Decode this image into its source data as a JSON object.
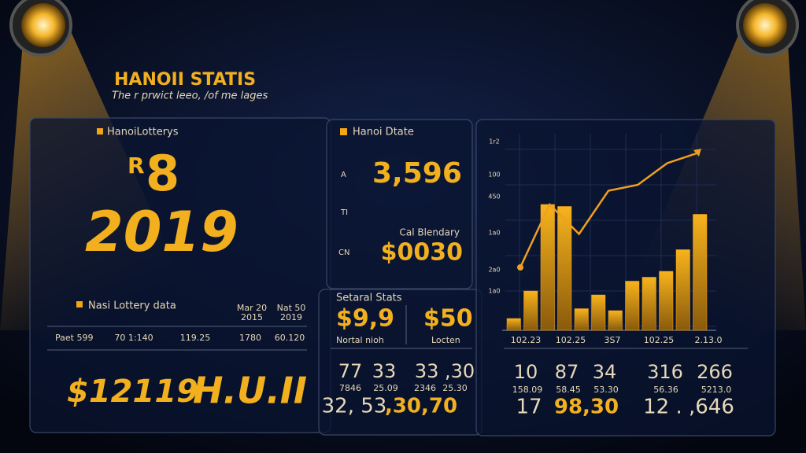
{
  "header": {
    "title": "HANOII STATIS",
    "subtitle": "The r prwict leeo, /of me lages"
  },
  "panel_lottery": {
    "label": "HanoiLotterys",
    "prefix": "R",
    "big": "8",
    "year": "2019",
    "table_title": "Nasi Lottery data",
    "columns": [
      [
        "Mar 20",
        "2015"
      ],
      [
        "Nat 50",
        "2019"
      ]
    ],
    "row": [
      "Paet 599",
      "70 1:140",
      "119.25",
      "1780",
      "60.120"
    ],
    "footer": [
      "$12119",
      "H.U.II"
    ]
  },
  "panel_date": {
    "label": "Hanoi Dtate",
    "value": "3,596",
    "side": [
      "A",
      "TI",
      "CN"
    ],
    "caption": "Cal Blendary",
    "amount": "$0030"
  },
  "panel_stats": {
    "label": "Setaral Stats",
    "values": [
      "$9,9",
      "$50"
    ],
    "captions": [
      "Nortal nioh",
      "Locten"
    ],
    "rows": [
      [
        "77",
        "33",
        "33 ,30"
      ],
      [
        "7846",
        "25.09",
        "2346",
        "25.30"
      ],
      [
        "32, 53",
        ",30,70"
      ]
    ]
  },
  "chart_data": {
    "type": "bar",
    "ylim": [
      0,
      100
    ],
    "y_labels": [
      "1r2",
      "100",
      "450",
      "1a0",
      "2a0",
      "1a0"
    ],
    "x_labels": [
      "102.23",
      "102.25",
      "3S7",
      "102.25",
      "2.13.0"
    ],
    "series": [
      {
        "type": "bar",
        "color": "#f2a516",
        "values": [
          6,
          20,
          64,
          63,
          11,
          18,
          10,
          25,
          27,
          30,
          41,
          59
        ]
      },
      {
        "type": "line",
        "color": "#f0a020",
        "values": [
          32,
          64,
          49,
          71,
          74,
          85,
          90
        ]
      }
    ]
  },
  "panel_numbers": {
    "rows": [
      [
        "10",
        "87",
        "34",
        "316",
        "266"
      ],
      [
        "158.09",
        "58.45",
        "53.30",
        "56.36",
        "5213.0"
      ],
      [
        "17",
        "98,30",
        "12 . ,646"
      ]
    ]
  }
}
